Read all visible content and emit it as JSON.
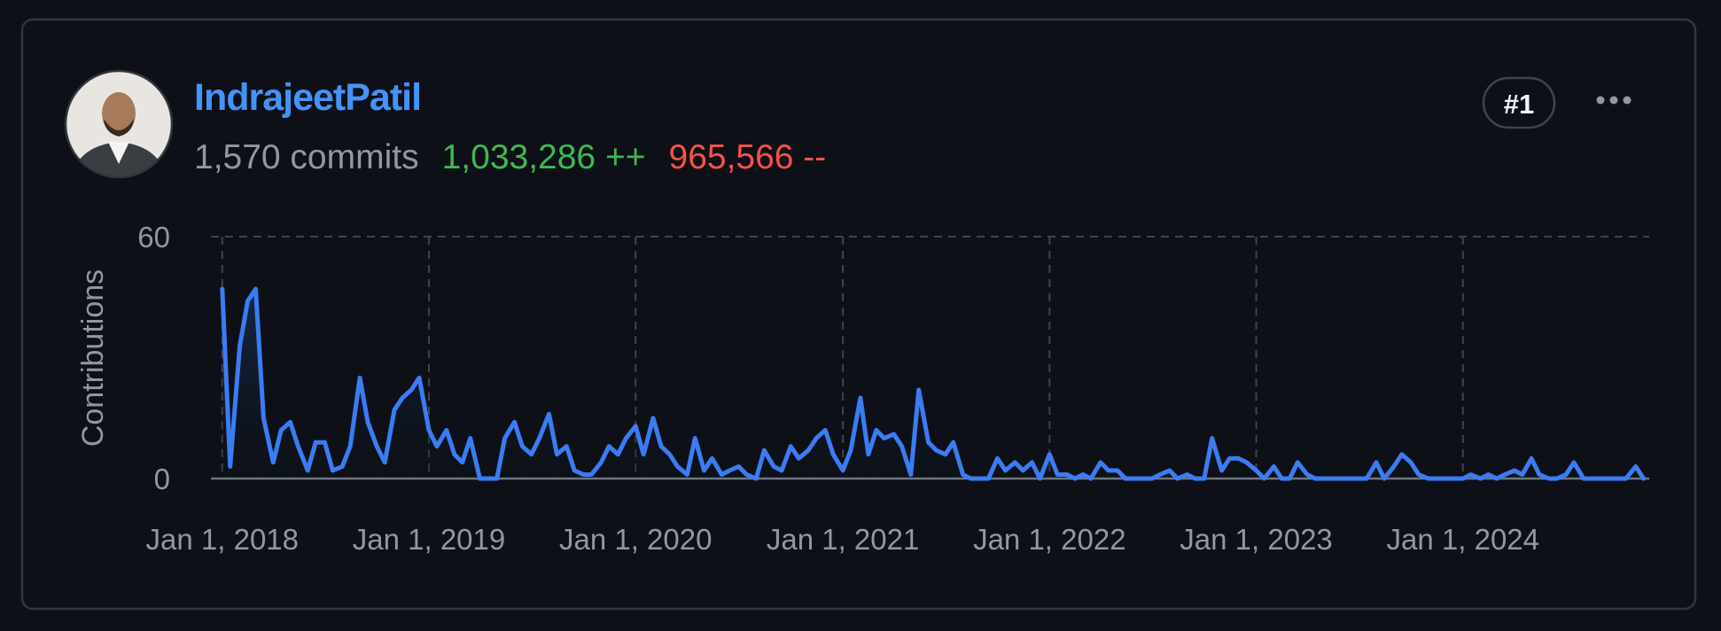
{
  "user": {
    "name": "IndrajeetPatil",
    "commits": "1,570 commits",
    "additions": "1,033,286 ++",
    "deletions": "965,566 --",
    "rank": "#1"
  },
  "chart_data": {
    "type": "area",
    "y_label": "Contributions",
    "color": "#3b7cf4",
    "x": [
      "2018-01-01",
      "2018-01-15",
      "2018-02-01",
      "2018-02-15",
      "2018-03-01",
      "2018-03-15",
      "2018-04-01",
      "2018-04-15",
      "2018-05-01",
      "2018-05-15",
      "2018-06-01",
      "2018-06-15",
      "2018-07-01",
      "2018-07-15",
      "2018-08-01",
      "2018-08-15",
      "2018-09-01",
      "2018-09-15",
      "2018-10-01",
      "2018-10-15",
      "2018-11-01",
      "2018-11-15",
      "2018-12-01",
      "2018-12-15",
      "2019-01-01",
      "2019-01-15",
      "2019-02-01",
      "2019-02-15",
      "2019-03-01",
      "2019-03-15",
      "2019-04-01",
      "2019-04-15",
      "2019-05-01",
      "2019-05-15",
      "2019-06-01",
      "2019-06-15",
      "2019-07-01",
      "2019-07-15",
      "2019-08-01",
      "2019-08-15",
      "2019-09-01",
      "2019-09-15",
      "2019-10-01",
      "2019-10-15",
      "2019-11-01",
      "2019-11-15",
      "2019-12-01",
      "2019-12-15",
      "2020-01-01",
      "2020-01-15",
      "2020-02-01",
      "2020-02-15",
      "2020-03-01",
      "2020-03-15",
      "2020-04-01",
      "2020-04-15",
      "2020-05-01",
      "2020-05-15",
      "2020-06-01",
      "2020-06-15",
      "2020-07-01",
      "2020-07-15",
      "2020-08-01",
      "2020-08-15",
      "2020-09-01",
      "2020-09-15",
      "2020-10-01",
      "2020-10-15",
      "2020-11-01",
      "2020-11-15",
      "2020-12-01",
      "2020-12-15",
      "2021-01-01",
      "2021-01-15",
      "2021-02-01",
      "2021-02-15",
      "2021-03-01",
      "2021-03-15",
      "2021-04-01",
      "2021-04-15",
      "2021-05-01",
      "2021-05-15",
      "2021-06-01",
      "2021-06-15",
      "2021-07-01",
      "2021-07-15",
      "2021-08-01",
      "2021-08-15",
      "2021-09-01",
      "2021-09-15",
      "2021-10-01",
      "2021-10-15",
      "2021-11-01",
      "2021-11-15",
      "2021-12-01",
      "2021-12-15",
      "2022-01-01",
      "2022-01-15",
      "2022-02-01",
      "2022-02-15",
      "2022-03-01",
      "2022-03-15",
      "2022-04-01",
      "2022-04-15",
      "2022-05-01",
      "2022-05-15",
      "2022-06-01",
      "2022-06-15",
      "2022-07-01",
      "2022-07-15",
      "2022-08-01",
      "2022-08-15",
      "2022-09-01",
      "2022-09-15",
      "2022-10-01",
      "2022-10-15",
      "2022-11-01",
      "2022-11-15",
      "2022-12-01",
      "2022-12-15",
      "2023-01-01",
      "2023-01-15",
      "2023-02-01",
      "2023-02-15",
      "2023-03-01",
      "2023-03-15",
      "2023-04-01",
      "2023-04-15",
      "2023-05-01",
      "2023-05-15",
      "2023-06-01",
      "2023-06-15",
      "2023-07-01",
      "2023-07-15",
      "2023-08-01",
      "2023-08-15",
      "2023-09-01",
      "2023-09-15",
      "2023-10-01",
      "2023-10-15",
      "2023-11-01",
      "2023-11-15",
      "2023-12-01",
      "2023-12-15",
      "2024-01-01",
      "2024-01-15",
      "2024-02-01",
      "2024-02-15",
      "2024-03-01",
      "2024-03-15",
      "2024-04-01",
      "2024-04-15",
      "2024-05-01",
      "2024-05-15",
      "2024-06-01",
      "2024-06-15",
      "2024-07-01",
      "2024-07-15",
      "2024-08-01",
      "2024-08-15",
      "2024-09-01",
      "2024-09-15",
      "2024-10-01",
      "2024-10-15",
      "2024-11-01",
      "2024-11-15"
    ],
    "values": [
      47,
      3,
      33,
      44,
      47,
      15,
      4,
      12,
      14,
      8,
      2,
      9,
      9,
      2,
      3,
      8,
      25,
      14,
      8,
      4,
      17,
      20,
      22,
      25,
      12,
      8,
      12,
      6,
      4,
      10,
      0,
      0,
      0,
      10,
      14,
      8,
      6,
      10,
      16,
      6,
      8,
      2,
      1,
      1,
      4,
      8,
      6,
      10,
      13,
      6,
      15,
      8,
      6,
      3,
      1,
      10,
      2,
      5,
      1,
      2,
      3,
      1,
      0,
      7,
      3,
      2,
      8,
      5,
      7,
      10,
      12,
      6,
      2,
      7,
      20,
      6,
      12,
      10,
      11,
      8,
      1,
      22,
      9,
      7,
      6,
      9,
      1,
      0,
      0,
      0,
      5,
      2,
      4,
      2,
      4,
      0,
      6,
      1,
      1,
      0,
      1,
      0,
      4,
      2,
      2,
      0,
      0,
      0,
      0,
      1,
      2,
      0,
      1,
      0,
      0,
      10,
      2,
      5,
      5,
      4,
      2,
      0,
      3,
      0,
      0,
      4,
      1,
      0,
      0,
      0,
      0,
      0,
      0,
      0,
      4,
      0,
      3,
      6,
      4,
      1,
      0,
      0,
      0,
      0,
      0,
      1,
      0,
      1,
      0,
      1,
      2,
      1,
      5,
      1,
      0,
      0,
      1,
      4,
      0,
      0,
      0,
      0,
      0,
      0,
      3,
      0
    ],
    "xlim": [
      "2017-12-12",
      "2024-11-25"
    ],
    "xticks": [
      {
        "value": "2018-01-01",
        "label": "Jan 1, 2018"
      },
      {
        "value": "2019-01-01",
        "label": "Jan 1, 2019"
      },
      {
        "value": "2020-01-01",
        "label": "Jan 1, 2020"
      },
      {
        "value": "2021-01-01",
        "label": "Jan 1, 2021"
      },
      {
        "value": "2022-01-01",
        "label": "Jan 1, 2022"
      },
      {
        "value": "2023-01-01",
        "label": "Jan 1, 2023"
      },
      {
        "value": "2024-01-01",
        "label": "Jan 1, 2024"
      }
    ],
    "ylim": [
      0,
      60
    ],
    "yticks": [
      0,
      60
    ],
    "grid": true
  }
}
